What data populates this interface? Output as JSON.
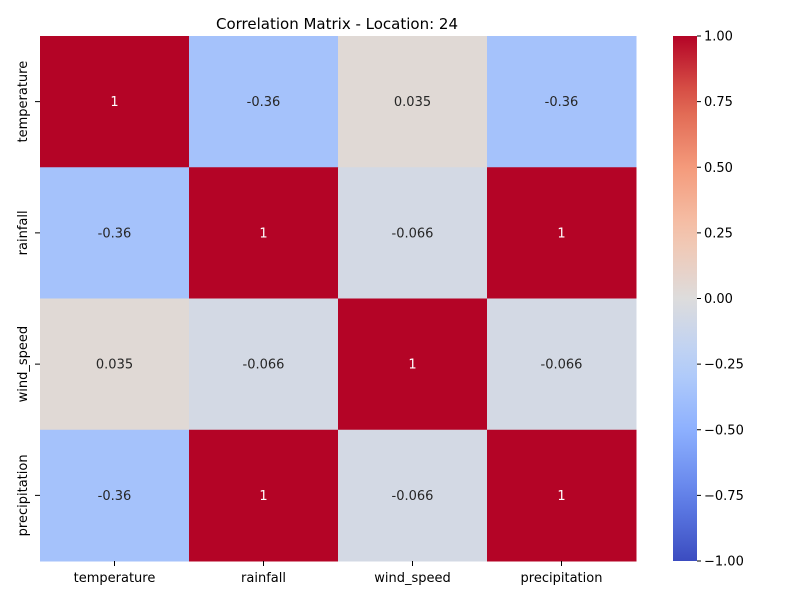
{
  "chart_data": {
    "type": "heatmap",
    "title": "Correlation Matrix - Location: 24",
    "xlabel": "",
    "ylabel": "",
    "x_categories": [
      "temperature",
      "rainfall",
      "wind_speed",
      "precipitation"
    ],
    "y_categories": [
      "temperature",
      "rainfall",
      "wind_speed",
      "precipitation"
    ],
    "values": [
      [
        1,
        -0.36,
        0.035,
        -0.36
      ],
      [
        -0.36,
        1,
        -0.066,
        1
      ],
      [
        0.035,
        -0.066,
        1,
        -0.066
      ],
      [
        -0.36,
        1,
        -0.066,
        1
      ]
    ],
    "annotations": [
      [
        "1",
        "-0.36",
        "0.035",
        "-0.36"
      ],
      [
        "-0.36",
        "1",
        "-0.066",
        "1"
      ],
      [
        "0.035",
        "-0.066",
        "1",
        "-0.066"
      ],
      [
        "-0.36",
        "1",
        "-0.066",
        "1"
      ]
    ],
    "colormap": "coolwarm",
    "vmin": -1,
    "vmax": 1,
    "colorbar_ticks": [
      1.0,
      0.75,
      0.5,
      0.25,
      0.0,
      -0.25,
      -0.5,
      -0.75,
      -1.0
    ],
    "colorbar_tick_labels": [
      "1.00",
      "0.75",
      "0.50",
      "0.25",
      "0.00",
      "−0.25",
      "−0.50",
      "−0.75",
      "−1.00"
    ],
    "grid": false,
    "legend": "colorbar-right"
  }
}
